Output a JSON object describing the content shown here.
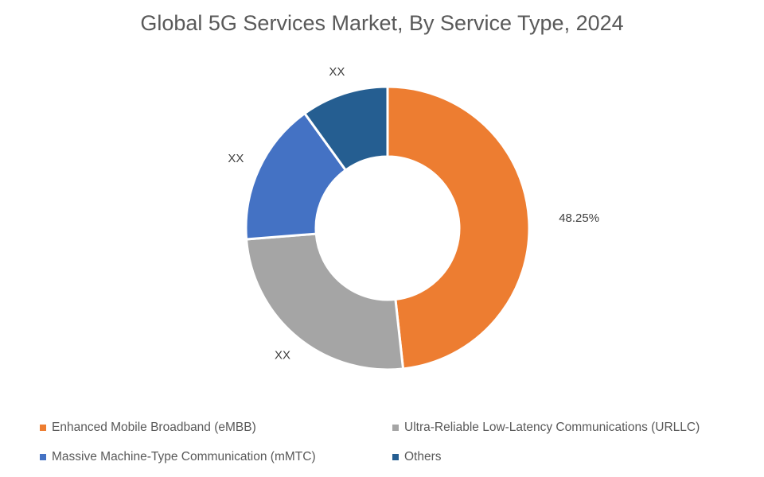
{
  "chart_data": {
    "type": "pie",
    "donut": true,
    "title": "Global 5G Services Market, By Service Type, 2024",
    "categories": [
      "Enhanced Mobile Broadband (eMBB)",
      "Ultra-Reliable Low-Latency Communications (URLLC)",
      "Massive Machine-Type Communication (mMTC)",
      "Others"
    ],
    "values": [
      48.25,
      25.5,
      16.3,
      9.95
    ],
    "data_labels": [
      "48.25%",
      "XX",
      "XX",
      "XX"
    ],
    "colors": [
      "#ED7D31",
      "#A5A5A5",
      "#4472C4",
      "#255E91"
    ],
    "legend_position": "bottom"
  }
}
